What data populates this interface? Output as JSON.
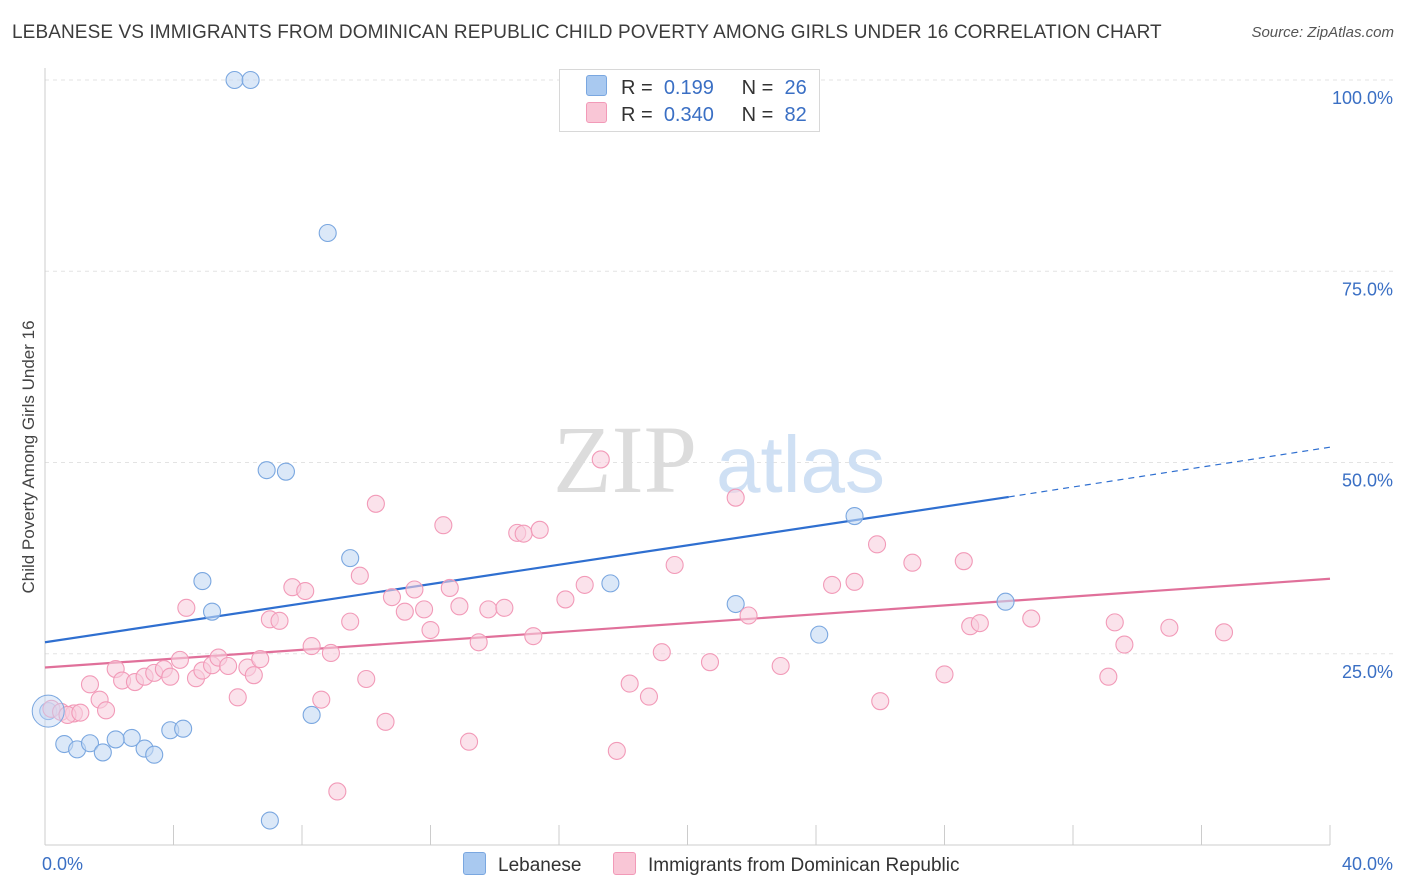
{
  "title": "LEBANESE VS IMMIGRANTS FROM DOMINICAN REPUBLIC CHILD POVERTY AMONG GIRLS UNDER 16 CORRELATION CHART",
  "source": "Source: ZipAtlas.com",
  "watermark": {
    "zip": "ZIP",
    "atlas": "atlas"
  },
  "legend": {
    "r_label": "R =",
    "n_label": "N =",
    "rows": [
      {
        "r": "0.199",
        "n": "26",
        "color": "#a9c9f0",
        "border": "#7aa7e0"
      },
      {
        "r": "0.340",
        "n": "82",
        "color": "#f9c6d6",
        "border": "#f29ab8"
      }
    ]
  },
  "bottom_legend": {
    "lebanese": "Lebanese",
    "dominican": "Immigrants from Dominican Republic"
  },
  "chart_data": {
    "type": "scatter",
    "xlabel": "",
    "ylabel": "Child Poverty Among Girls Under 16",
    "xlim": [
      0,
      40
    ],
    "ylim": [
      0,
      100
    ],
    "x_tick_labels": [
      "0.0%",
      "40.0%"
    ],
    "y_ticks": [
      25,
      50,
      75,
      100
    ],
    "y_tick_labels": [
      "25.0%",
      "50.0%",
      "75.0%",
      "100.0%"
    ],
    "grid": true,
    "legend_position": "top-center",
    "series": [
      {
        "name": "Lebanese",
        "color": "#7aa7e0",
        "fill": "#c3d8f3",
        "line_color": "#2f6fd0",
        "trend": {
          "x0": 0,
          "y0": 26.5,
          "x1": 30,
          "y1": 45.5,
          "dash_x1": 40,
          "dash_y1": 52
        },
        "points": [
          [
            0.1,
            17.5
          ],
          [
            0.6,
            13.2
          ],
          [
            1.0,
            12.5
          ],
          [
            1.4,
            13.3
          ],
          [
            1.8,
            12.1
          ],
          [
            2.7,
            14.0
          ],
          [
            2.2,
            13.8
          ],
          [
            3.1,
            12.6
          ],
          [
            3.4,
            11.8
          ],
          [
            3.9,
            15.0
          ],
          [
            4.3,
            15.2
          ],
          [
            4.9,
            34.5
          ],
          [
            5.2,
            30.5
          ],
          [
            5.9,
            100
          ],
          [
            6.4,
            100
          ],
          [
            6.9,
            49
          ],
          [
            7.5,
            48.8
          ],
          [
            8.3,
            17.0
          ],
          [
            7.0,
            3.2
          ],
          [
            8.8,
            80
          ],
          [
            9.5,
            37.5
          ],
          [
            17.6,
            34.2
          ],
          [
            21.5,
            31.5
          ],
          [
            24.1,
            27.5
          ],
          [
            25.2,
            43.0
          ],
          [
            29.9,
            31.8
          ]
        ]
      },
      {
        "name": "Immigrants from Dominican Republic",
        "color": "#f29ab8",
        "fill": "#f9cfdd",
        "line_color": "#e0709a",
        "trend": {
          "x0": 0,
          "y0": 23.2,
          "x1": 40,
          "y1": 34.8
        },
        "points": [
          [
            0.2,
            17.8
          ],
          [
            0.5,
            17.4
          ],
          [
            0.9,
            17.2
          ],
          [
            1.4,
            21.0
          ],
          [
            1.7,
            19.0
          ],
          [
            1.9,
            17.6
          ],
          [
            2.2,
            23.0
          ],
          [
            2.4,
            21.5
          ],
          [
            2.8,
            21.3
          ],
          [
            3.1,
            22.0
          ],
          [
            3.4,
            22.5
          ],
          [
            3.7,
            23.0
          ],
          [
            3.9,
            22.0
          ],
          [
            4.2,
            24.2
          ],
          [
            4.4,
            31.0
          ],
          [
            4.7,
            21.8
          ],
          [
            4.9,
            22.8
          ],
          [
            5.2,
            23.5
          ],
          [
            5.4,
            24.5
          ],
          [
            5.7,
            23.4
          ],
          [
            6.0,
            19.3
          ],
          [
            6.3,
            23.2
          ],
          [
            6.5,
            22.2
          ],
          [
            6.7,
            24.3
          ],
          [
            7.0,
            29.5
          ],
          [
            7.3,
            29.3
          ],
          [
            7.7,
            33.7
          ],
          [
            8.1,
            33.2
          ],
          [
            8.3,
            26.0
          ],
          [
            8.6,
            19.0
          ],
          [
            8.9,
            25.1
          ],
          [
            9.1,
            7.0
          ],
          [
            9.5,
            29.2
          ],
          [
            9.8,
            35.2
          ],
          [
            10.0,
            21.7
          ],
          [
            10.3,
            44.6
          ],
          [
            10.6,
            16.1
          ],
          [
            10.8,
            32.4
          ],
          [
            11.2,
            30.5
          ],
          [
            11.5,
            33.4
          ],
          [
            11.8,
            30.8
          ],
          [
            12.0,
            28.1
          ],
          [
            12.4,
            41.8
          ],
          [
            12.6,
            33.6
          ],
          [
            12.9,
            31.2
          ],
          [
            13.2,
            13.5
          ],
          [
            13.5,
            26.5
          ],
          [
            13.8,
            30.8
          ],
          [
            14.3,
            31.0
          ],
          [
            14.7,
            40.8
          ],
          [
            14.9,
            40.7
          ],
          [
            15.2,
            27.3
          ],
          [
            15.4,
            41.2
          ],
          [
            16.2,
            32.1
          ],
          [
            16.8,
            34.0
          ],
          [
            17.3,
            50.4
          ],
          [
            17.8,
            12.3
          ],
          [
            18.2,
            21.1
          ],
          [
            18.8,
            19.4
          ],
          [
            19.2,
            25.2
          ],
          [
            19.6,
            36.6
          ],
          [
            20.7,
            23.9
          ],
          [
            21.5,
            45.4
          ],
          [
            21.9,
            30.0
          ],
          [
            22.9,
            23.4
          ],
          [
            24.5,
            34.0
          ],
          [
            25.2,
            34.4
          ],
          [
            25.9,
            39.3
          ],
          [
            26.0,
            18.8
          ],
          [
            27.0,
            36.9
          ],
          [
            28.0,
            22.3
          ],
          [
            28.6,
            37.1
          ],
          [
            28.8,
            28.6
          ],
          [
            29.1,
            29.0
          ],
          [
            30.7,
            29.6
          ],
          [
            33.1,
            22.0
          ],
          [
            33.3,
            29.1
          ],
          [
            33.6,
            26.2
          ],
          [
            35.0,
            28.4
          ],
          [
            36.7,
            27.8
          ],
          [
            0.7,
            17.0
          ],
          [
            1.1,
            17.3
          ]
        ]
      }
    ]
  }
}
